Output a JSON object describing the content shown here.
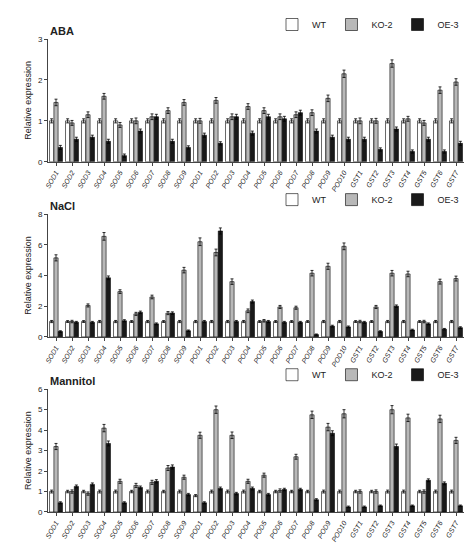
{
  "chart_data": [
    {
      "type": "bar",
      "title": "ABA",
      "categories": [
        "SOD1",
        "SOD2",
        "SOD3",
        "SOD4",
        "SOD5",
        "SOD6",
        "SOD7",
        "SOD8",
        "SOD9",
        "POD1",
        "POD2",
        "POD3",
        "POD4",
        "POD5",
        "POD6",
        "POD7",
        "POD8",
        "POD9",
        "POD10",
        "GST1",
        "GST2",
        "GST3",
        "GST4",
        "GST5",
        "GST6",
        "GST7"
      ],
      "series": [
        {
          "name": "WT",
          "color": "#ffffff",
          "values": [
            1.0,
            1.0,
            1.0,
            1.0,
            1.0,
            1.0,
            1.0,
            1.0,
            1.0,
            1.0,
            1.0,
            1.0,
            1.0,
            1.0,
            1.0,
            1.0,
            1.0,
            1.0,
            1.0,
            1.0,
            1.0,
            1.0,
            1.0,
            1.0,
            1.0,
            1.0
          ],
          "error": [
            0.05,
            0.05,
            0.05,
            0.05,
            0.05,
            0.05,
            0.05,
            0.05,
            0.05,
            0.05,
            0.05,
            0.05,
            0.05,
            0.05,
            0.05,
            0.05,
            0.05,
            0.05,
            0.05,
            0.05,
            0.05,
            0.05,
            0.05,
            0.05,
            0.05,
            0.05
          ]
        },
        {
          "name": "KO-2",
          "color": "#b8b8b8",
          "values": [
            1.45,
            0.95,
            1.15,
            1.6,
            0.9,
            1.0,
            1.1,
            1.25,
            1.45,
            1.0,
            1.5,
            1.1,
            1.35,
            1.25,
            1.1,
            1.15,
            1.2,
            1.55,
            2.15,
            1.0,
            1.0,
            2.4,
            1.05,
            0.95,
            1.75,
            1.95
          ],
          "error": [
            0.08,
            0.06,
            0.07,
            0.07,
            0.06,
            0.07,
            0.07,
            0.07,
            0.07,
            0.06,
            0.07,
            0.07,
            0.07,
            0.07,
            0.07,
            0.07,
            0.07,
            0.08,
            0.09,
            0.07,
            0.06,
            0.09,
            0.06,
            0.06,
            0.08,
            0.08
          ]
        },
        {
          "name": "OE-3",
          "color": "#1a1a1a",
          "values": [
            0.35,
            0.55,
            0.6,
            0.5,
            0.15,
            0.75,
            1.1,
            0.5,
            0.35,
            0.65,
            0.45,
            1.1,
            0.7,
            1.1,
            1.05,
            1.2,
            0.75,
            0.6,
            0.55,
            0.55,
            0.3,
            0.8,
            0.25,
            0.55,
            0.25,
            0.45
          ],
          "error": [
            0.05,
            0.05,
            0.05,
            0.05,
            0.04,
            0.05,
            0.06,
            0.05,
            0.04,
            0.05,
            0.04,
            0.06,
            0.05,
            0.06,
            0.06,
            0.06,
            0.05,
            0.05,
            0.05,
            0.05,
            0.04,
            0.05,
            0.04,
            0.05,
            0.04,
            0.05
          ]
        }
      ],
      "ylabel": "Relative expression",
      "ylim": [
        0,
        3
      ],
      "yticks": [
        0,
        1,
        2,
        3
      ],
      "grid": false,
      "legend": "upper right"
    },
    {
      "type": "bar",
      "title": "NaCl",
      "categories": [
        "SOD1",
        "SOD2",
        "SOD3",
        "SOD4",
        "SOD5",
        "SOD6",
        "SOD7",
        "SOD8",
        "SOD9",
        "POD1",
        "POD2",
        "POD3",
        "POD4",
        "POD5",
        "POD6",
        "POD7",
        "POD8",
        "POD9",
        "POD10",
        "GST1",
        "GST2",
        "GST3",
        "GST4",
        "GST5",
        "GST6",
        "GST7"
      ],
      "series": [
        {
          "name": "WT",
          "color": "#ffffff",
          "values": [
            1.0,
            1.0,
            1.0,
            1.0,
            1.0,
            1.0,
            1.0,
            1.0,
            1.0,
            1.0,
            1.0,
            1.0,
            1.0,
            1.0,
            1.0,
            1.0,
            1.0,
            1.0,
            1.0,
            1.0,
            1.0,
            1.0,
            1.0,
            1.0,
            1.0,
            1.0
          ],
          "error": [
            0.07,
            0.06,
            0.06,
            0.07,
            0.07,
            0.06,
            0.07,
            0.06,
            0.07,
            0.07,
            0.07,
            0.07,
            0.07,
            0.06,
            0.06,
            0.06,
            0.06,
            0.07,
            0.07,
            0.06,
            0.06,
            0.07,
            0.07,
            0.06,
            0.07,
            0.07
          ]
        },
        {
          "name": "KO-2",
          "color": "#b8b8b8",
          "values": [
            5.15,
            1.0,
            2.05,
            6.55,
            2.95,
            1.5,
            2.6,
            1.55,
            4.35,
            6.2,
            5.5,
            3.6,
            1.7,
            1.05,
            1.95,
            1.9,
            4.15,
            4.6,
            5.9,
            1.0,
            1.95,
            4.15,
            4.1,
            1.0,
            3.6,
            3.8
          ],
          "error": [
            0.2,
            0.08,
            0.1,
            0.25,
            0.12,
            0.1,
            0.12,
            0.1,
            0.18,
            0.25,
            0.22,
            0.18,
            0.12,
            0.08,
            0.1,
            0.1,
            0.18,
            0.2,
            0.22,
            0.08,
            0.1,
            0.18,
            0.18,
            0.08,
            0.16,
            0.16
          ]
        },
        {
          "name": "OE-3",
          "color": "#1a1a1a",
          "values": [
            0.35,
            0.95,
            0.95,
            3.85,
            1.05,
            1.6,
            0.85,
            1.55,
            0.4,
            1.0,
            6.9,
            1.0,
            2.3,
            1.0,
            0.95,
            0.95,
            0.15,
            0.7,
            0.65,
            0.95,
            0.35,
            2.0,
            0.45,
            0.85,
            0.5,
            0.6
          ],
          "error": [
            0.05,
            0.06,
            0.06,
            0.12,
            0.07,
            0.08,
            0.06,
            0.08,
            0.05,
            0.07,
            0.2,
            0.07,
            0.1,
            0.07,
            0.06,
            0.06,
            0.04,
            0.06,
            0.06,
            0.06,
            0.05,
            0.08,
            0.05,
            0.06,
            0.05,
            0.06
          ]
        }
      ],
      "ylabel": "Relative expression",
      "ylim": [
        0,
        8
      ],
      "yticks": [
        0,
        2,
        4,
        6,
        8
      ],
      "grid": false,
      "legend": "upper right"
    },
    {
      "type": "bar",
      "title": "Mannitol",
      "categories": [
        "SOD1",
        "SOD2",
        "SOD3",
        "SOD4",
        "SOD5",
        "SOD6",
        "SOD7",
        "SOD8",
        "SOD9",
        "POD1",
        "POD2",
        "POD3",
        "POD4",
        "POD5",
        "POD6",
        "POD7",
        "POD8",
        "POD9",
        "POD10",
        "GST1",
        "GST2",
        "GST3",
        "GST4",
        "GST5",
        "GST6",
        "GST7"
      ],
      "series": [
        {
          "name": "WT",
          "color": "#ffffff",
          "values": [
            1.0,
            1.0,
            1.0,
            1.0,
            1.0,
            1.0,
            1.0,
            1.0,
            1.0,
            0.8,
            1.0,
            1.0,
            1.0,
            1.0,
            1.0,
            1.0,
            1.0,
            1.0,
            1.0,
            1.0,
            1.0,
            1.0,
            1.0,
            1.0,
            1.0,
            1.0
          ],
          "error": [
            0.07,
            0.06,
            0.06,
            0.07,
            0.07,
            0.06,
            0.07,
            0.06,
            0.07,
            0.05,
            0.07,
            0.07,
            0.07,
            0.06,
            0.06,
            0.06,
            0.06,
            0.07,
            0.07,
            0.06,
            0.06,
            0.07,
            0.07,
            0.06,
            0.07,
            0.07
          ]
        },
        {
          "name": "KO-2",
          "color": "#b8b8b8",
          "values": [
            3.2,
            1.0,
            0.9,
            4.1,
            1.5,
            1.3,
            1.45,
            2.15,
            1.7,
            3.75,
            5.0,
            3.75,
            1.5,
            1.8,
            1.05,
            2.7,
            4.75,
            4.15,
            4.8,
            1.0,
            1.0,
            5.0,
            4.6,
            1.0,
            4.55,
            3.5
          ],
          "error": [
            0.15,
            0.08,
            0.08,
            0.18,
            0.1,
            0.1,
            0.1,
            0.12,
            0.1,
            0.15,
            0.18,
            0.16,
            0.1,
            0.1,
            0.08,
            0.12,
            0.18,
            0.18,
            0.2,
            0.08,
            0.08,
            0.2,
            0.18,
            0.08,
            0.18,
            0.15
          ]
        },
        {
          "name": "OE-3",
          "color": "#1a1a1a",
          "values": [
            0.45,
            1.25,
            1.35,
            3.35,
            0.45,
            1.2,
            1.5,
            2.2,
            0.85,
            0.45,
            1.15,
            0.9,
            1.15,
            0.85,
            1.1,
            1.1,
            0.6,
            3.85,
            0.25,
            0.25,
            0.3,
            3.2,
            0.3,
            1.55,
            1.4,
            0.3
          ],
          "error": [
            0.05,
            0.07,
            0.07,
            0.12,
            0.05,
            0.07,
            0.08,
            0.1,
            0.06,
            0.05,
            0.07,
            0.06,
            0.07,
            0.06,
            0.06,
            0.06,
            0.05,
            0.12,
            0.04,
            0.04,
            0.04,
            0.12,
            0.04,
            0.07,
            0.07,
            0.04
          ]
        }
      ],
      "ylabel": "Relative expression",
      "ylim": [
        0,
        6
      ],
      "yticks": [
        0,
        1,
        2,
        3,
        4,
        5,
        6
      ],
      "grid": false,
      "legend": "upper right"
    }
  ]
}
